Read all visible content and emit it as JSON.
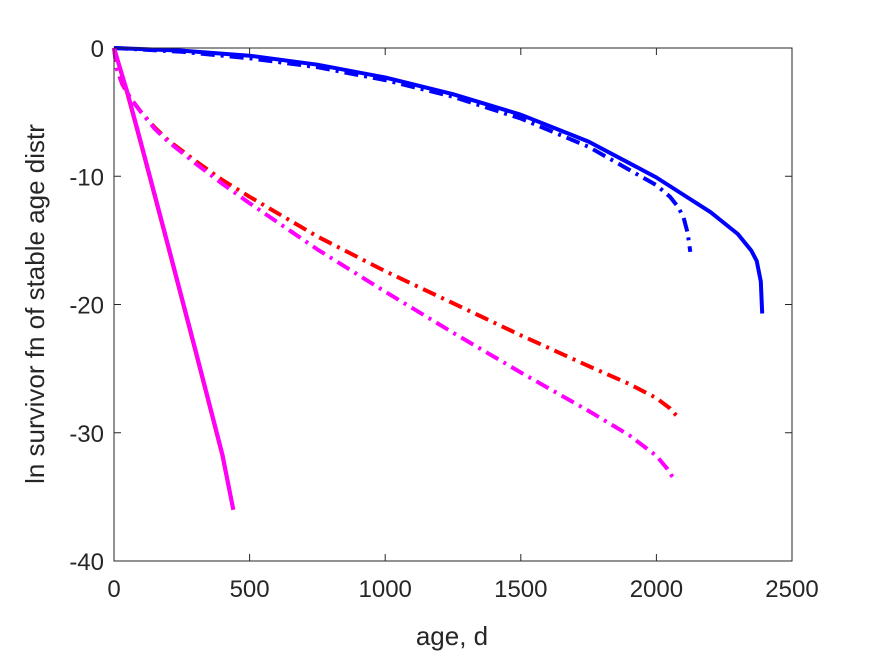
{
  "chart_data": {
    "type": "line",
    "title": "",
    "xlabel": "age, d",
    "ylabel": "ln survivor fn of stable age distr",
    "xlim": [
      0,
      2500
    ],
    "ylim": [
      -40,
      0
    ],
    "xticks": [
      0,
      500,
      1000,
      1500,
      2000,
      2500
    ],
    "yticks": [
      0,
      -10,
      -20,
      -30,
      -40
    ],
    "xtick_labels": [
      "0",
      "500",
      "1000",
      "1500",
      "2000",
      "2500"
    ],
    "ytick_labels": [
      "0",
      "-10",
      "-20",
      "-30",
      "-40"
    ],
    "grid": false,
    "legend": "none",
    "series": [
      {
        "color": "#0000ff",
        "style": "solid",
        "x": [
          0,
          250,
          500,
          750,
          1000,
          1250,
          1500,
          1750,
          2000,
          2200,
          2300,
          2350,
          2370,
          2385,
          2390
        ],
        "y": [
          0,
          -0.2,
          -0.6,
          -1.3,
          -2.3,
          -3.6,
          -5.2,
          -7.3,
          -10.1,
          -12.8,
          -14.5,
          -15.8,
          -16.6,
          -18.2,
          -20.7
        ]
      },
      {
        "color": "#0000ff",
        "style": "dashdot",
        "x": [
          0,
          250,
          500,
          750,
          1000,
          1250,
          1500,
          1750,
          2000,
          2050,
          2080,
          2100,
          2115,
          2125
        ],
        "y": [
          0,
          -0.3,
          -0.8,
          -1.5,
          -2.5,
          -3.8,
          -5.5,
          -7.7,
          -10.7,
          -11.6,
          -12.4,
          -13.2,
          -14.4,
          -15.9
        ]
      },
      {
        "color": "#ff0000",
        "style": "dashdot",
        "x": [
          0,
          10,
          30,
          60,
          100,
          150,
          200,
          300,
          400,
          500,
          750,
          1000,
          1250,
          1500,
          1750,
          1900,
          2000,
          2050,
          2080
        ],
        "y": [
          0,
          -1.6,
          -2.8,
          -3.9,
          -5.0,
          -6.2,
          -7.2,
          -8.8,
          -10.3,
          -11.6,
          -14.7,
          -17.4,
          -19.9,
          -22.4,
          -24.8,
          -26.2,
          -27.3,
          -28.1,
          -28.8
        ]
      },
      {
        "color": "#ff00ff",
        "style": "dashdot",
        "x": [
          0,
          10,
          30,
          60,
          100,
          150,
          200,
          300,
          400,
          500,
          750,
          1000,
          1250,
          1500,
          1750,
          1900,
          2000,
          2040,
          2070
        ],
        "y": [
          0,
          -1.6,
          -2.8,
          -3.9,
          -5.0,
          -6.3,
          -7.3,
          -9.0,
          -10.6,
          -12.1,
          -15.7,
          -19.0,
          -22.2,
          -25.3,
          -28.3,
          -30.2,
          -31.8,
          -32.8,
          -33.8
        ]
      },
      {
        "color": "#ff0000",
        "style": "solid",
        "x": [
          0,
          50,
          100,
          200,
          300,
          400,
          440
        ],
        "y": [
          0,
          -3.6,
          -7.5,
          -15.5,
          -23.6,
          -31.8,
          -36.0
        ]
      },
      {
        "color": "#ff00ff",
        "style": "solid",
        "x": [
          0,
          50,
          100,
          200,
          300,
          400,
          440
        ],
        "y": [
          0,
          -3.5,
          -7.4,
          -15.4,
          -23.5,
          -31.7,
          -36.0
        ]
      }
    ]
  }
}
